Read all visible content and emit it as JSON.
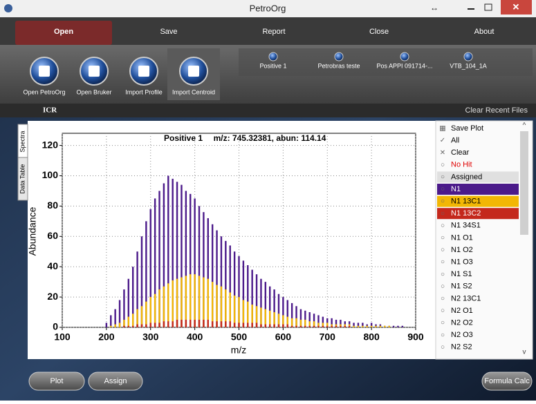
{
  "window": {
    "title": "PetroOrg"
  },
  "menu": [
    "Open",
    "Save",
    "Report",
    "Close",
    "About"
  ],
  "toolbar": [
    "Open PetroOrg",
    "Open Bruker",
    "Import Profile",
    "Import Centroid"
  ],
  "recent_files": [
    "Positive 1",
    "Petrobras teste",
    "Pos APPI 091714-...",
    "VTB_104_1A"
  ],
  "section": {
    "title": "ICR",
    "action": "Clear Recent Files"
  },
  "tabs": [
    "Spectra",
    "Data Table"
  ],
  "chart_data": {
    "type": "bar",
    "title": "Positive 1",
    "subtitle": "m/z: 745.32381, abun: 114.14",
    "x_label": "m/z",
    "y_label": "Abundance",
    "xlim": [
      100,
      900
    ],
    "xticks": [
      100,
      200,
      300,
      400,
      500,
      600,
      700,
      800,
      900
    ],
    "ylim": [
      0,
      128
    ],
    "yticks": [
      0,
      20,
      40,
      60,
      80,
      100,
      120
    ],
    "grid": true,
    "x": [
      200,
      210,
      220,
      230,
      240,
      250,
      260,
      270,
      280,
      290,
      300,
      310,
      320,
      330,
      340,
      350,
      360,
      370,
      380,
      390,
      400,
      410,
      420,
      430,
      440,
      450,
      460,
      470,
      480,
      490,
      500,
      510,
      520,
      530,
      540,
      550,
      560,
      570,
      580,
      590,
      600,
      610,
      620,
      630,
      640,
      650,
      660,
      670,
      680,
      690,
      700,
      710,
      720,
      730,
      740,
      750,
      760,
      770,
      780,
      790,
      800,
      810,
      820,
      830,
      840,
      850,
      860,
      870
    ],
    "series": [
      {
        "name": "N1",
        "color": "#4b1a8a",
        "values": [
          3,
          8,
          12,
          18,
          25,
          32,
          40,
          50,
          60,
          70,
          78,
          85,
          90,
          95,
          100,
          98,
          96,
          94,
          90,
          88,
          85,
          80,
          76,
          72,
          68,
          64,
          60,
          57,
          54,
          50,
          47,
          44,
          41,
          38,
          35,
          32,
          30,
          27,
          25,
          22,
          20,
          18,
          16,
          14,
          12,
          11,
          10,
          9,
          8,
          7,
          6,
          6,
          5,
          5,
          4,
          4,
          3,
          3,
          3,
          2,
          3,
          2,
          2,
          1,
          1,
          1,
          1,
          1
        ]
      },
      {
        "name": "N1 13C1",
        "color": "#f2b705",
        "values": [
          0,
          1,
          2,
          3,
          5,
          7,
          9,
          12,
          14,
          17,
          20,
          22,
          25,
          27,
          29,
          31,
          32,
          33,
          34,
          35,
          35,
          34,
          33,
          32,
          30,
          28,
          27,
          25,
          23,
          21,
          20,
          18,
          17,
          15,
          14,
          13,
          12,
          11,
          10,
          9,
          8,
          7,
          6,
          6,
          5,
          5,
          4,
          4,
          3,
          3,
          3,
          2,
          2,
          2,
          2,
          2,
          1,
          1,
          1,
          1,
          1,
          1,
          1,
          1,
          1,
          0,
          0,
          0
        ]
      },
      {
        "name": "N1 13C2",
        "color": "#c4281c",
        "values": [
          0,
          0,
          0,
          0,
          1,
          1,
          1,
          2,
          2,
          2,
          3,
          3,
          3,
          4,
          4,
          4,
          5,
          5,
          5,
          5,
          5,
          5,
          5,
          5,
          4,
          4,
          4,
          4,
          4,
          3,
          3,
          3,
          3,
          3,
          3,
          2,
          2,
          2,
          2,
          2,
          2,
          2,
          1,
          1,
          1,
          1,
          1,
          1,
          1,
          1,
          1,
          1,
          1,
          1,
          1,
          1,
          0,
          0,
          0,
          0,
          0,
          0,
          0,
          0,
          0,
          0,
          0,
          0
        ]
      }
    ]
  },
  "side_list": {
    "actions": [
      "Save Plot",
      "All",
      "Clear"
    ],
    "before": [
      "No Hit",
      "Assigned"
    ],
    "after": [
      "N1 34S1",
      "N1 O1",
      "N1 O2",
      "N1 O3",
      "N1 S1",
      "N1 S2",
      "N2 13C1",
      "N2 O1",
      "N2 O2",
      "N2 O3",
      "N2 S2"
    ]
  },
  "bottom_buttons": [
    "Plot",
    "Assign",
    "Formula Calc"
  ]
}
